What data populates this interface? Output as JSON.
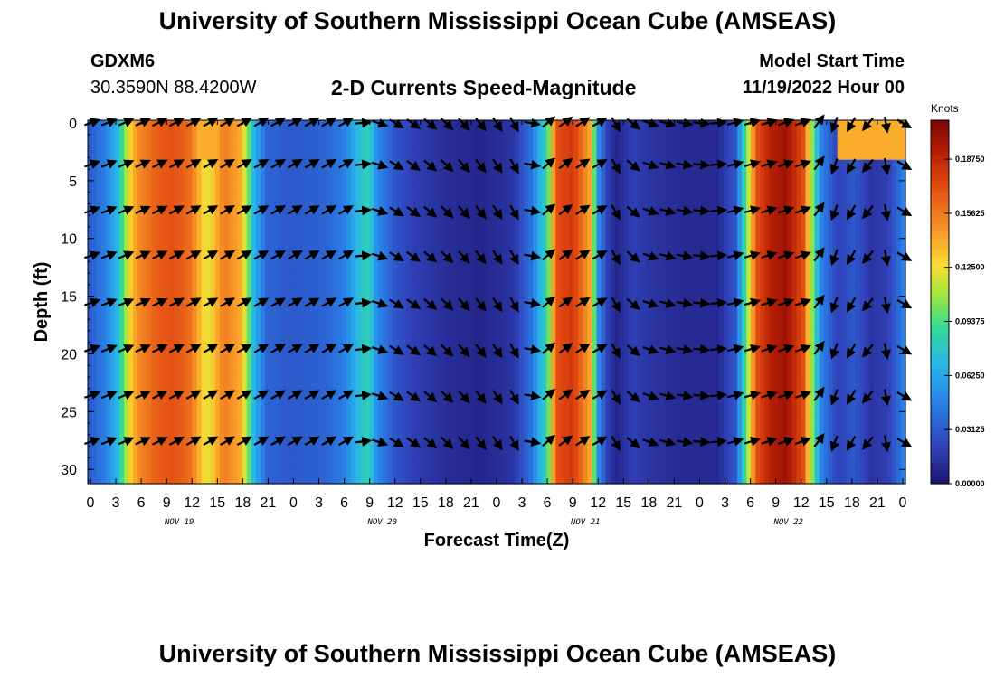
{
  "header": {
    "title": "University of Southern Mississippi Ocean Cube (AMSEAS)",
    "station_id": "GDXM6",
    "coordinates": "30.3590N  88.4200W",
    "plot_title": "2-D Currents Speed-Magnitude",
    "model_start_label": "Model Start Time",
    "model_start_value": "11/19/2022 Hour 00"
  },
  "footer": {
    "title": "University of Southern Mississippi Ocean Cube (AMSEAS)"
  },
  "chart_data": {
    "type": "heatmap",
    "title": "2-D Currents Speed-Magnitude",
    "xlabel": "Forecast Time(Z)",
    "ylabel": "Depth (ft)",
    "x_hours_range": [
      0,
      96
    ],
    "y_depth_range": [
      0,
      31
    ],
    "x_tick_labels": [
      "0",
      "3",
      "6",
      "9",
      "12",
      "15",
      "18",
      "21",
      "0",
      "3",
      "6",
      "9",
      "12",
      "15",
      "18",
      "21",
      "0",
      "3",
      "6",
      "9",
      "12",
      "15",
      "18",
      "21",
      "0",
      "3",
      "6",
      "9",
      "12",
      "15",
      "18",
      "21",
      "0"
    ],
    "y_ticks": [
      0,
      5,
      10,
      15,
      20,
      25,
      30
    ],
    "date_labels": [
      {
        "label": "NOV 19",
        "hour": 10.5
      },
      {
        "label": "NOV 20",
        "hour": 34.5
      },
      {
        "label": "NOV 21",
        "hour": 58.5
      },
      {
        "label": "NOV 22",
        "hour": 82.5
      }
    ],
    "colorbar": {
      "unit": "Knots",
      "min": 0.0,
      "max": 0.21,
      "tick_values": [
        0.0,
        0.03125,
        0.0625,
        0.09375,
        0.125,
        0.15625,
        0.1875
      ],
      "tick_labels": [
        "0.00000",
        "0.03125",
        "0.06250",
        "0.09375",
        "0.12500",
        "0.15625",
        "0.18750"
      ]
    },
    "speed_profile_by_hour": [
      [
        0,
        0.03
      ],
      [
        2,
        0.045
      ],
      [
        3.5,
        0.07
      ],
      [
        5,
        0.13
      ],
      [
        6,
        0.15
      ],
      [
        8,
        0.165
      ],
      [
        10,
        0.17
      ],
      [
        12,
        0.16
      ],
      [
        14,
        0.12
      ],
      [
        16,
        0.155
      ],
      [
        18,
        0.14
      ],
      [
        19.5,
        0.07
      ],
      [
        21,
        0.035
      ],
      [
        24,
        0.03
      ],
      [
        28,
        0.035
      ],
      [
        30,
        0.045
      ],
      [
        32,
        0.075
      ],
      [
        33,
        0.085
      ],
      [
        34,
        0.05
      ],
      [
        36,
        0.03
      ],
      [
        38,
        0.02
      ],
      [
        42,
        0.012
      ],
      [
        46,
        0.008
      ],
      [
        50,
        0.015
      ],
      [
        52,
        0.04
      ],
      [
        54,
        0.09
      ],
      [
        55,
        0.17
      ],
      [
        57,
        0.18
      ],
      [
        59,
        0.14
      ],
      [
        60,
        0.05
      ],
      [
        61,
        0.02
      ],
      [
        62,
        0.008
      ],
      [
        64,
        0.02
      ],
      [
        66,
        0.015
      ],
      [
        70,
        0.01
      ],
      [
        74,
        0.01
      ],
      [
        76,
        0.03
      ],
      [
        77,
        0.08
      ],
      [
        78.5,
        0.17
      ],
      [
        80,
        0.19
      ],
      [
        82,
        0.2
      ],
      [
        84,
        0.17
      ],
      [
        86,
        0.05
      ],
      [
        88,
        0.02
      ],
      [
        90,
        0.03
      ],
      [
        92,
        0.015
      ],
      [
        94,
        0.02
      ],
      [
        96,
        0.05
      ]
    ],
    "arrow_depths_ft": [
      0,
      3.6,
      7.6,
      11.5,
      15.6,
      19.6,
      23.6,
      27.6
    ],
    "arrow_hours": [
      0,
      2,
      4,
      6,
      8,
      10,
      12,
      14,
      16,
      18,
      20,
      22,
      24,
      26,
      28,
      30,
      32,
      34,
      36,
      38,
      40,
      42,
      44,
      46,
      48,
      50,
      52,
      54,
      56,
      58,
      60,
      62,
      64,
      66,
      68,
      70,
      72,
      74,
      76,
      78,
      80,
      82,
      84,
      86,
      88,
      90,
      92,
      94,
      96
    ],
    "arrow_direction_by_hour_deg_from_north": [
      [
        0,
        70
      ],
      [
        12,
        60
      ],
      [
        20,
        60
      ],
      [
        30,
        60
      ],
      [
        35,
        120
      ],
      [
        40,
        130
      ],
      [
        50,
        150
      ],
      [
        54,
        50
      ],
      [
        60,
        60
      ],
      [
        62,
        150
      ],
      [
        66,
        110
      ],
      [
        72,
        95
      ],
      [
        76,
        75
      ],
      [
        84,
        70
      ],
      [
        87,
        20
      ],
      [
        88,
        200
      ],
      [
        92,
        220
      ],
      [
        96,
        120
      ]
    ]
  }
}
